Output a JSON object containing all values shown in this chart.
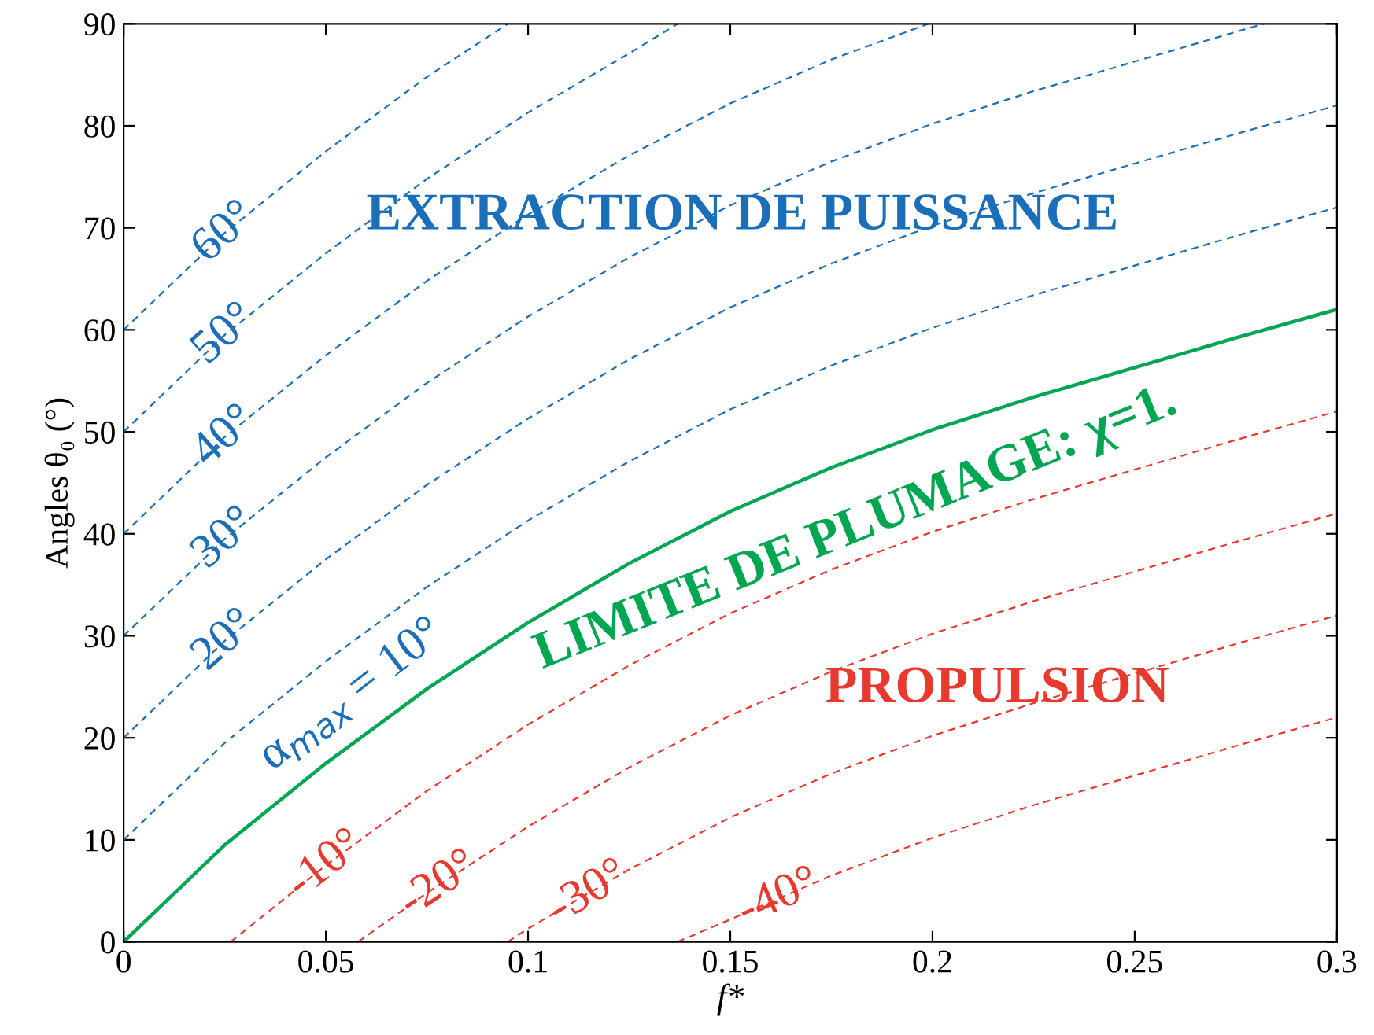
{
  "chart_data": {
    "type": "line",
    "xlabel": "f*",
    "ylabel": "Angles θ₀ (°)",
    "xlim": [
      0,
      0.3
    ],
    "ylim": [
      0,
      90
    ],
    "xticks": [
      0,
      0.05,
      0.1,
      0.15,
      0.2,
      0.25,
      0.3
    ],
    "yticks": [
      0,
      10,
      20,
      30,
      40,
      50,
      60,
      70,
      80,
      90
    ],
    "grid": false,
    "legend": false,
    "marker": "none",
    "series": [
      {
        "color": "#1a6fb8",
        "line_style": "dashed",
        "x": [
          0,
          0.025,
          0.05,
          0.075,
          0.095
        ],
        "values": [
          60,
          69.5,
          77.5,
          84.8,
          90
        ]
      },
      {
        "color": "#1a6fb8",
        "line_style": "dashed",
        "x": [
          0,
          0.025,
          0.05,
          0.075,
          0.1,
          0.125,
          0.137
        ],
        "values": [
          50,
          59.5,
          67.5,
          74.8,
          81.3,
          87.1,
          90
        ]
      },
      {
        "color": "#1a6fb8",
        "line_style": "dashed",
        "x": [
          0,
          0.025,
          0.05,
          0.075,
          0.1,
          0.125,
          0.15,
          0.175,
          0.199
        ],
        "values": [
          40,
          49.5,
          57.5,
          64.8,
          71.3,
          77.1,
          82.2,
          86.5,
          90
        ]
      },
      {
        "color": "#1a6fb8",
        "line_style": "dashed",
        "x": [
          0,
          0.025,
          0.05,
          0.075,
          0.1,
          0.125,
          0.15,
          0.175,
          0.2,
          0.225,
          0.25,
          0.275,
          0.282
        ],
        "values": [
          30,
          39.5,
          47.5,
          54.8,
          61.3,
          67.1,
          72.2,
          76.5,
          80.2,
          83.4,
          86.3,
          89.2,
          90
        ]
      },
      {
        "color": "#1a6fb8",
        "line_style": "dashed",
        "x": [
          0,
          0.025,
          0.05,
          0.075,
          0.1,
          0.125,
          0.15,
          0.175,
          0.2,
          0.225,
          0.25,
          0.275,
          0.3
        ],
        "values": [
          20,
          29.5,
          37.5,
          44.8,
          51.3,
          57.1,
          62.2,
          66.5,
          70.2,
          73.4,
          76.3,
          79.2,
          82
        ]
      },
      {
        "color": "#1a6fb8",
        "line_style": "dashed",
        "x": [
          0,
          0.025,
          0.05,
          0.075,
          0.1,
          0.125,
          0.15,
          0.175,
          0.2,
          0.225,
          0.25,
          0.275,
          0.3
        ],
        "values": [
          10,
          19.5,
          27.5,
          34.8,
          41.3,
          47.1,
          52.2,
          56.5,
          60.2,
          63.4,
          66.3,
          69.2,
          72
        ]
      },
      {
        "color": "#00a651",
        "line_style": "solid",
        "x": [
          0,
          0.025,
          0.05,
          0.075,
          0.1,
          0.125,
          0.15,
          0.175,
          0.2,
          0.225,
          0.25,
          0.275,
          0.3
        ],
        "values": [
          0,
          9.5,
          17.5,
          24.8,
          31.3,
          37.1,
          42.2,
          46.5,
          50.2,
          53.4,
          56.3,
          59.2,
          62
        ]
      },
      {
        "color": "#e8392f",
        "line_style": "dashed",
        "x": [
          0.0265,
          0.05,
          0.075,
          0.1,
          0.125,
          0.15,
          0.175,
          0.2,
          0.225,
          0.25,
          0.275,
          0.3
        ],
        "values": [
          0,
          7.5,
          14.8,
          21.3,
          27.1,
          32.2,
          36.5,
          40.2,
          43.4,
          46.3,
          49.2,
          52
        ]
      },
      {
        "color": "#e8392f",
        "line_style": "dashed",
        "x": [
          0.058,
          0.075,
          0.1,
          0.125,
          0.15,
          0.175,
          0.2,
          0.225,
          0.25,
          0.275,
          0.3
        ],
        "values": [
          0,
          4.8,
          11.3,
          17.1,
          22.2,
          26.5,
          30.2,
          33.4,
          36.3,
          39.2,
          42
        ]
      },
      {
        "color": "#e8392f",
        "line_style": "dashed",
        "x": [
          0.095,
          0.1,
          0.125,
          0.15,
          0.175,
          0.2,
          0.225,
          0.25,
          0.275,
          0.3
        ],
        "values": [
          0,
          1.3,
          7.1,
          12.2,
          16.5,
          20.2,
          23.4,
          26.3,
          29.2,
          32
        ]
      },
      {
        "color": "#e8392f",
        "line_style": "dashed",
        "x": [
          0.137,
          0.15,
          0.175,
          0.2,
          0.225,
          0.25,
          0.275,
          0.3
        ],
        "values": [
          0,
          2.2,
          6.5,
          10.2,
          13.4,
          16.3,
          19.2,
          22
        ]
      }
    ],
    "annotations": [
      {
        "text": "60°",
        "x": 0.025,
        "y": 69.5
      },
      {
        "text": "50°",
        "x": 0.025,
        "y": 59.5
      },
      {
        "text": "40°",
        "x": 0.025,
        "y": 49.5
      },
      {
        "text": "30°",
        "x": 0.025,
        "y": 39.5
      },
      {
        "text": "20°",
        "x": 0.025,
        "y": 29.5
      },
      {
        "text": "α$_{max}$ = 10°",
        "x": 0.05,
        "y": 27.5
      },
      "EXTRACTION DE PUISSANCE",
      {
        "text": "LIMITE DE PLUMAGE: χ=1.",
        "x": 0.175,
        "y": 46.5
      },
      "PROPULSION",
      {
        "text": "-10°",
        "x": 0.05,
        "y": 7.5
      },
      {
        "text": "-20°",
        "x": 0.078,
        "y": 5.6
      },
      {
        "text": "-30°",
        "x": 0.115,
        "y": 4.8
      },
      {
        "text": "-40°",
        "x": 0.162,
        "y": 4.3
      }
    ]
  }
}
